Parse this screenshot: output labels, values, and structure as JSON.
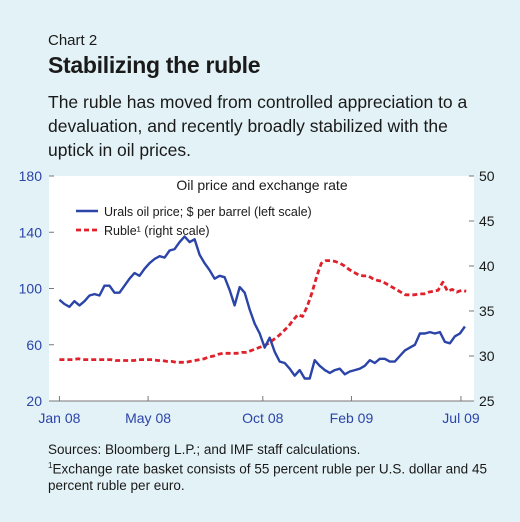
{
  "header": {
    "eyebrow": "Chart 2",
    "title": "Stabilizing the ruble",
    "subtitle": "The ruble has moved from controlled appreciation to a devaluation, and recently broadly stabilized with the uptick in oil prices."
  },
  "footer": {
    "sources": "Sources: Bloomberg L.P.; and IMF staff calculations.",
    "footnote_mark": "1",
    "footnote": "Exchange rate basket consists of 55 percent ruble per U.S. dollar and 45 percent ruble per euro."
  },
  "colors": {
    "background": "#e3f2f7",
    "plot_bg": "#ffffff",
    "oil": "#2b44a8",
    "ruble": "#e0202a",
    "axis_text": "#2b44a8"
  },
  "chart_data": {
    "type": "line",
    "title": "Oil price and exchange rate",
    "x_tick_labels": [
      "Jan 08",
      "May 08",
      "Oct 08",
      "Feb 09",
      "Jul 09"
    ],
    "x_tick_positions": [
      0,
      17,
      39,
      56,
      77
    ],
    "x_range": [
      -2,
      79.5
    ],
    "y_left": {
      "range": [
        20,
        180
      ],
      "ticks": [
        20,
        60,
        100,
        140,
        180
      ]
    },
    "y_right": {
      "range": [
        25,
        50
      ],
      "ticks": [
        25,
        30,
        35,
        40,
        45,
        50
      ]
    },
    "grid": false,
    "legend_position": "top-left",
    "series": [
      {
        "name": "Urals oil price; $ per barrel (left scale)",
        "axis": "left",
        "values": [
          92,
          89,
          87,
          91,
          88,
          91,
          95,
          96,
          95,
          102,
          102,
          97,
          97,
          102,
          107,
          111,
          109,
          114,
          118,
          121,
          123,
          122,
          127,
          128,
          133,
          137,
          133,
          135,
          124,
          118,
          113,
          107,
          109,
          108,
          99,
          88,
          101,
          97,
          85,
          75,
          68,
          58,
          65,
          55,
          48,
          47,
          43,
          38,
          42,
          36,
          36,
          49,
          45,
          42,
          40,
          42,
          43,
          39,
          41,
          42,
          43,
          45,
          49,
          47,
          50,
          50,
          48,
          48,
          52,
          56,
          58,
          60,
          68,
          68,
          69,
          68,
          69,
          62,
          61,
          66,
          68,
          73
        ],
        "x_start": 0,
        "x_step": 0.96
      },
      {
        "name": "Ruble¹ (right scale)",
        "axis": "right",
        "values": [
          29.6,
          29.6,
          29.6,
          29.6,
          29.7,
          29.6,
          29.6,
          29.6,
          29.6,
          29.6,
          29.6,
          29.6,
          29.5,
          29.5,
          29.5,
          29.5,
          29.5,
          29.6,
          29.6,
          29.6,
          29.6,
          29.5,
          29.5,
          29.4,
          29.4,
          29.3,
          29.3,
          29.3,
          29.4,
          29.5,
          29.6,
          29.7,
          29.9,
          30.0,
          30.2,
          30.3,
          30.3,
          30.3,
          30.3,
          30.4,
          30.4,
          30.6,
          30.8,
          31.0,
          31.2,
          31.5,
          31.9,
          32.3,
          32.8,
          33.3,
          34.0,
          34.6,
          34.4,
          35.5,
          37.0,
          38.8,
          40.3,
          40.6,
          40.6,
          40.5,
          40.3,
          40.0,
          39.6,
          39.3,
          39.0,
          38.9,
          38.9,
          38.6,
          38.4,
          38.3,
          38.0,
          37.7,
          37.4,
          37.1,
          36.8,
          36.8,
          36.8,
          36.9,
          36.9,
          37.1,
          37.2,
          37.3,
          38.2,
          37.2,
          37.4,
          37.1,
          37.3,
          37.2
        ],
        "x_start": 0,
        "x_step": 0.8966
      }
    ]
  }
}
